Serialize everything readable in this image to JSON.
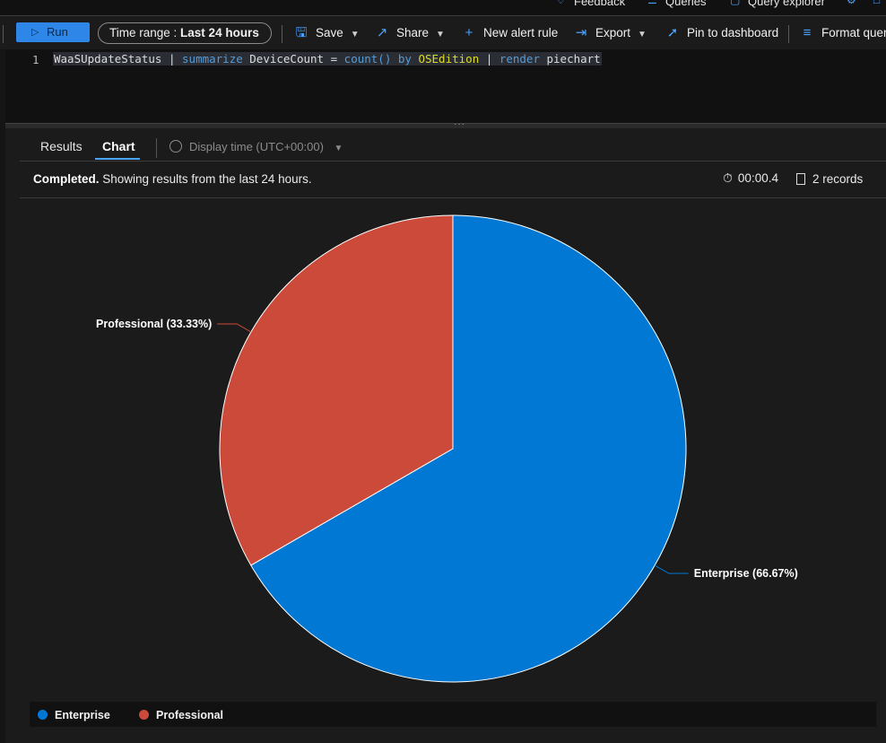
{
  "top_strip": {
    "feedback_label": "Feedback",
    "queries_label": "Queries",
    "query_explorer_label": "Query explorer"
  },
  "toolbar": {
    "run_label": "Run",
    "time_range_prefix": "Time range :",
    "time_range_value": "Last 24 hours",
    "save_label": "Save",
    "share_label": "Share",
    "new_alert_label": "New alert rule",
    "export_label": "Export",
    "pin_label": "Pin to dashboard",
    "format_label": "Format quer"
  },
  "editor": {
    "line_number": "1",
    "tokens": {
      "table": "WaaSUpdateStatus",
      "pipe1": "|",
      "summarize": "summarize",
      "field": "DeviceCount",
      "eq": "=",
      "count": "count()",
      "by": "by",
      "group": "OSEdition",
      "pipe2": "|",
      "render": "render",
      "viz": "piechart"
    }
  },
  "results": {
    "tab_results": "Results",
    "tab_chart": "Chart",
    "display_time": "Display time (UTC+00:00)",
    "status_bold": "Completed.",
    "status_text": "Showing results from the last 24 hours.",
    "duration": "00:00.4",
    "records": "2 records"
  },
  "chart_data": {
    "type": "pie",
    "slices": [
      {
        "name": "Enterprise",
        "label": "Enterprise (66.67%)",
        "percent": 66.67,
        "color": "#0078d4"
      },
      {
        "name": "Professional",
        "label": "Professional (33.33%)",
        "percent": 33.33,
        "color": "#cc4a39"
      }
    ],
    "legend": [
      "Enterprise",
      "Professional"
    ],
    "legend_position": "bottom"
  }
}
